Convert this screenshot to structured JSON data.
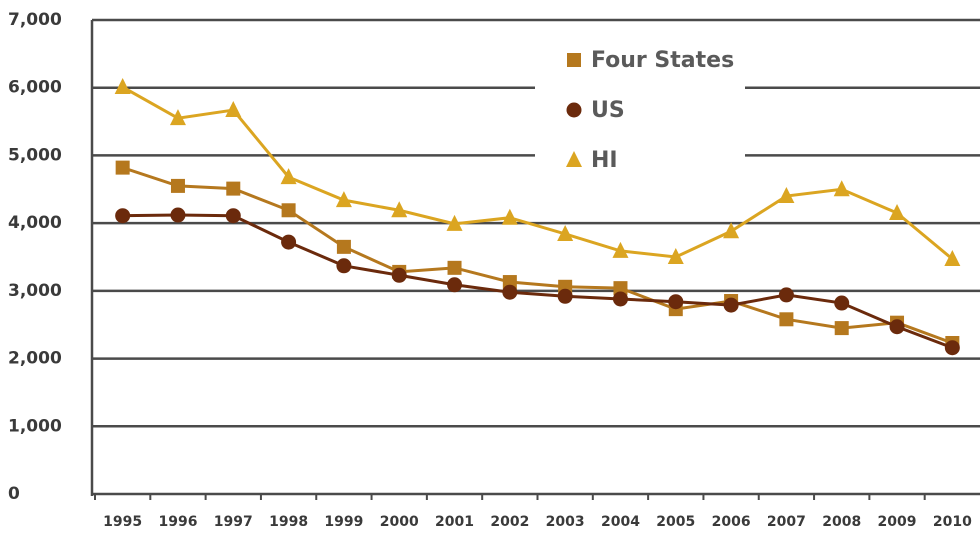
{
  "chart_data": {
    "type": "line",
    "categories": [
      "1995",
      "1996",
      "1997",
      "1998",
      "1999",
      "2000",
      "2001",
      "2002",
      "2003",
      "2004",
      "2005",
      "2006",
      "2007",
      "2008",
      "2009",
      "2010"
    ],
    "series": [
      {
        "name": "Four States",
        "color": "#b5781e",
        "marker": "square",
        "values": [
          4820,
          4550,
          4510,
          4190,
          3650,
          3280,
          3340,
          3130,
          3060,
          3040,
          2730,
          2850,
          2580,
          2450,
          2530,
          2230
        ]
      },
      {
        "name": "US",
        "color": "#6b2a0c",
        "marker": "circle",
        "values": [
          4110,
          4120,
          4110,
          3720,
          3370,
          3230,
          3090,
          2980,
          2920,
          2880,
          2840,
          2790,
          2940,
          2820,
          2470,
          2160
        ]
      },
      {
        "name": "HI",
        "color": "#dba521",
        "marker": "triangle",
        "values": [
          6010,
          5550,
          5670,
          4680,
          4340,
          4190,
          3990,
          4080,
          3840,
          3590,
          3500,
          3880,
          4400,
          4500,
          4150,
          3470
        ]
      }
    ],
    "ylim": [
      0,
      7000
    ],
    "yticks": [
      {
        "value": 0,
        "label": "0"
      },
      {
        "value": 1000,
        "label": "1,000"
      },
      {
        "value": 2000,
        "label": "2,000"
      },
      {
        "value": 3000,
        "label": "3,000"
      },
      {
        "value": 4000,
        "label": "4,000"
      },
      {
        "value": 5000,
        "label": "5,000"
      },
      {
        "value": 6000,
        "label": "6,000"
      },
      {
        "value": 7000,
        "label": "7,000"
      }
    ],
    "grid": true
  }
}
